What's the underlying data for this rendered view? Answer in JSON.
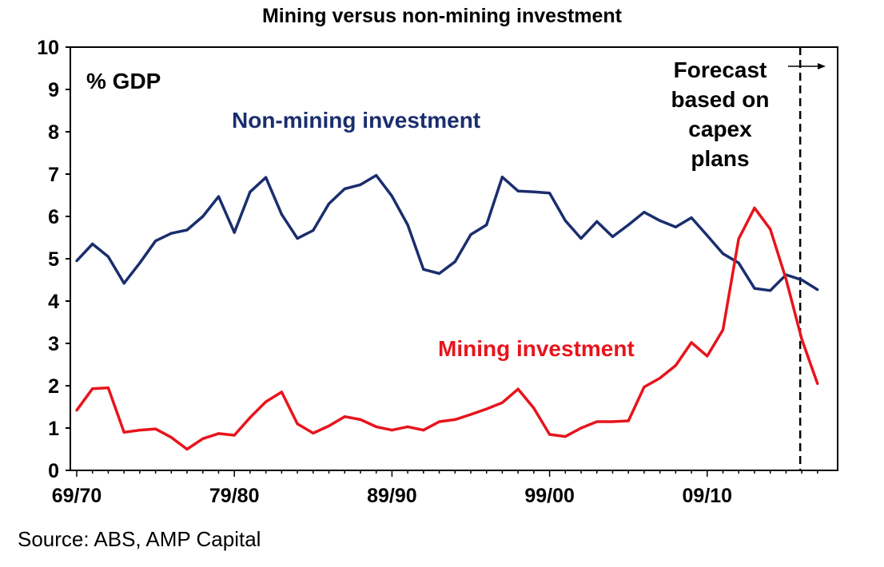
{
  "chart_data": {
    "type": "line",
    "title": "Mining versus non-mining investment",
    "ylabel": "% GDP",
    "xlabel": "",
    "ylim": [
      0,
      10
    ],
    "yticks": [
      0,
      1,
      2,
      3,
      4,
      5,
      6,
      7,
      8,
      9,
      10
    ],
    "xticks": [
      "69/70",
      "79/80",
      "89/90",
      "99/00",
      "09/10"
    ],
    "x_start_year": 1969,
    "grid": false,
    "series": [
      {
        "name": "Non-mining investment",
        "color": "#1a2e6e",
        "values": [
          4.95,
          5.35,
          5.05,
          4.42,
          4.9,
          5.42,
          5.6,
          5.68,
          6.0,
          6.47,
          5.62,
          6.58,
          6.92,
          6.05,
          5.48,
          5.67,
          6.3,
          6.65,
          6.75,
          6.97,
          6.48,
          5.8,
          4.75,
          4.65,
          4.93,
          5.57,
          5.8,
          6.93,
          6.6,
          6.58,
          6.55,
          5.9,
          5.48,
          5.88,
          5.52,
          5.8,
          6.1,
          5.9,
          5.75,
          5.97,
          5.55,
          5.12,
          4.9,
          4.3,
          4.25,
          4.62,
          4.5,
          4.27
        ]
      },
      {
        "name": "Mining investment",
        "color": "#e8141c",
        "values": [
          1.42,
          1.93,
          1.95,
          0.9,
          0.95,
          0.98,
          0.78,
          0.5,
          0.75,
          0.87,
          0.83,
          1.25,
          1.62,
          1.85,
          1.1,
          0.88,
          1.05,
          1.27,
          1.2,
          1.03,
          0.95,
          1.03,
          0.95,
          1.15,
          1.2,
          1.32,
          1.45,
          1.6,
          1.92,
          1.47,
          0.85,
          0.8,
          1.0,
          1.15,
          1.15,
          1.17,
          1.97,
          2.18,
          2.48,
          3.02,
          2.7,
          3.32,
          5.47,
          6.2,
          5.7,
          4.52,
          3.1,
          2.05
        ]
      }
    ],
    "annotations": [
      {
        "text": "% GDP"
      },
      {
        "text": "Forecast based on capex plans",
        "lines": [
          "Forecast",
          "based on",
          "capex",
          "plans"
        ]
      }
    ],
    "forecast_start_index": 46
  },
  "source": "Source: ABS, AMP Capital"
}
